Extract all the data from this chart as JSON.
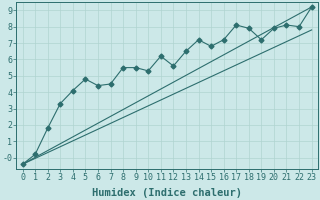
{
  "xlabel": "Humidex (Indice chaleur)",
  "ylabel": "",
  "bg_color": "#cce8e8",
  "grid_color": "#b0d4d0",
  "line_color": "#2d6e6e",
  "xlim": [
    -0.5,
    23.5
  ],
  "ylim": [
    -0.7,
    9.5
  ],
  "xticks": [
    0,
    1,
    2,
    3,
    4,
    5,
    6,
    7,
    8,
    9,
    10,
    11,
    12,
    13,
    14,
    15,
    16,
    17,
    18,
    19,
    20,
    21,
    22,
    23
  ],
  "yticks": [
    0,
    1,
    2,
    3,
    4,
    5,
    6,
    7,
    8,
    9
  ],
  "ytick_labels": [
    "-0",
    "1",
    "2",
    "3",
    "4",
    "5",
    "6",
    "7",
    "8",
    "9"
  ],
  "line1_x": [
    0,
    1,
    2,
    3,
    4,
    5,
    6,
    7,
    8,
    9,
    10,
    11,
    12,
    13,
    14,
    15,
    16,
    17,
    18,
    19,
    20,
    21,
    22,
    23
  ],
  "line1_y": [
    -0.4,
    0.2,
    1.8,
    3.3,
    4.1,
    4.8,
    4.4,
    4.5,
    5.5,
    5.5,
    5.3,
    6.2,
    5.6,
    6.5,
    7.2,
    6.8,
    7.2,
    8.1,
    7.9,
    7.2,
    7.9,
    8.1,
    8.0,
    9.2
  ],
  "line2_x": [
    0,
    23
  ],
  "line2_y": [
    -0.4,
    9.2
  ],
  "line3_x": [
    0,
    23
  ],
  "line3_y": [
    -0.4,
    7.8
  ],
  "xlabel_fontsize": 7.5,
  "tick_fontsize": 6.0
}
